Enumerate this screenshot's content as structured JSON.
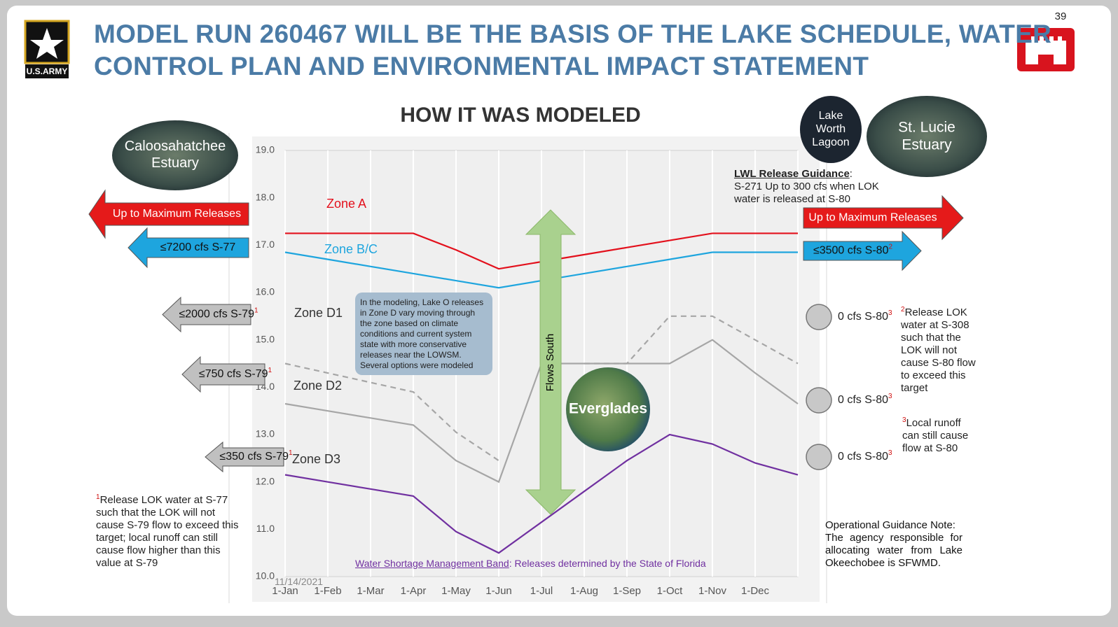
{
  "slide": {
    "page": "39",
    "title_lines": [
      "MODEL RUN 260467 WILL BE THE BASIS OF THE LAKE SCHEDULE, WATER",
      "CONTROL PLAN AND ENVIRONMENTAL IMPACT STATEMENT"
    ],
    "army_label": "U.S.ARMY",
    "date": "11/14/2021"
  },
  "places": [
    "Caloosahatchee Estuary",
    "Lake Worth Lagoon",
    "St. Lucie Estuary",
    "Everglades"
  ],
  "left_releases": [
    {
      "text": "Up to Maximum Releases"
    },
    {
      "text": "≤7200 cfs S-77"
    },
    {
      "text": "≤2000 cfs S-79",
      "note": "1"
    },
    {
      "text": "≤750 cfs S-79",
      "note": "1"
    },
    {
      "text": "≤350 cfs S-79",
      "note": "1"
    }
  ],
  "right_releases": [
    {
      "text": "Up to Maximum Releases"
    },
    {
      "text": "≤3500 cfs S-80",
      "note": "2"
    },
    {
      "text": "0 cfs S-80",
      "note": "3"
    },
    {
      "text": "0 cfs S-80",
      "note": "3"
    },
    {
      "text": "0 cfs S-80",
      "note": "3"
    }
  ],
  "lwl": {
    "heading": "LWL Release Guidance",
    "text": "S-271 Up to 300 cfs when LOK water is released at S-80"
  },
  "footnotes": [
    {
      "mark": "1",
      "text": "Release LOK water at S-77 such that the LOK will not cause S-79 flow to exceed this target; local runoff can still cause flow higher than this value at S-79"
    },
    {
      "mark": "2",
      "text": "Release LOK water at S-308 such that the LOK will not cause S-80 flow to exceed this target"
    },
    {
      "mark": "3",
      "text": "Local runoff can still cause flow at S-80"
    }
  ],
  "callout": "In the modeling, Lake O releases in Zone D vary moving through the zone based on climate conditions and current system state with more conservative releases near the LOWSM. Several options were modeled",
  "operational_note": {
    "heading": "Operational Guidance Note:",
    "text": "The agency responsible for allocating water from Lake Okeechobee is SFWMD."
  },
  "flows_label": "Flows South",
  "shortage": {
    "link": "Water Shortage Management Band",
    "text": ": Releases determined by the State of Florida"
  },
  "chart_data": {
    "type": "line",
    "title": "HOW IT WAS MODELED",
    "categories": [
      "1-Jan",
      "1-Feb",
      "1-Mar",
      "1-Apr",
      "1-May",
      "1-Jun",
      "1-Jul",
      "1-Aug",
      "1-Sep",
      "1-Oct",
      "1-Nov",
      "1-Dec",
      null
    ],
    "series": [
      {
        "name": "Zone A",
        "color": "#e3101c",
        "values": [
          17.25,
          17.25,
          17.25,
          17.25,
          16.9,
          16.5,
          16.65,
          16.8,
          16.95,
          17.1,
          17.25,
          17.25,
          17.25
        ]
      },
      {
        "name": "Zone B/C",
        "color": "#1ea5de",
        "values": [
          16.85,
          16.7,
          16.55,
          16.4,
          16.25,
          16.1,
          16.25,
          16.4,
          16.55,
          16.7,
          16.85,
          16.85,
          16.85
        ]
      },
      {
        "name": "Zone D1",
        "color": "#a6a6a6",
        "dash": true,
        "values": [
          14.5,
          14.3,
          14.1,
          13.9,
          13.05,
          12.45,
          null,
          14.5,
          14.5,
          15.5,
          15.5,
          15.0,
          14.5
        ]
      },
      {
        "name": "Zone D2",
        "color": "#a6a6a6",
        "values": [
          13.65,
          13.5,
          13.35,
          13.2,
          12.45,
          12.0,
          14.5,
          14.5,
          14.5,
          14.5,
          15.0,
          14.3,
          13.65
        ]
      },
      {
        "name": "Zone D3",
        "color": "#7030a0",
        "values": [
          12.15,
          12.0,
          11.85,
          11.7,
          10.95,
          10.5,
          11.15,
          11.8,
          12.45,
          13.0,
          12.8,
          12.4,
          12.15
        ]
      }
    ],
    "ylim": [
      10,
      19
    ],
    "yticks": [
      {
        "value": 10,
        "label": "10.0"
      },
      {
        "value": 11,
        "label": "11.0"
      },
      {
        "value": 12,
        "label": "12.0"
      },
      {
        "value": 13,
        "label": "13.0"
      },
      {
        "value": 14,
        "label": "14.0"
      },
      {
        "value": 15,
        "label": "15.0"
      },
      {
        "value": 16,
        "label": "16.0"
      },
      {
        "value": 17,
        "label": "17.0"
      },
      {
        "value": 18,
        "label": "18.0"
      },
      {
        "value": 19,
        "label": "19.0"
      }
    ],
    "grid": "x"
  }
}
